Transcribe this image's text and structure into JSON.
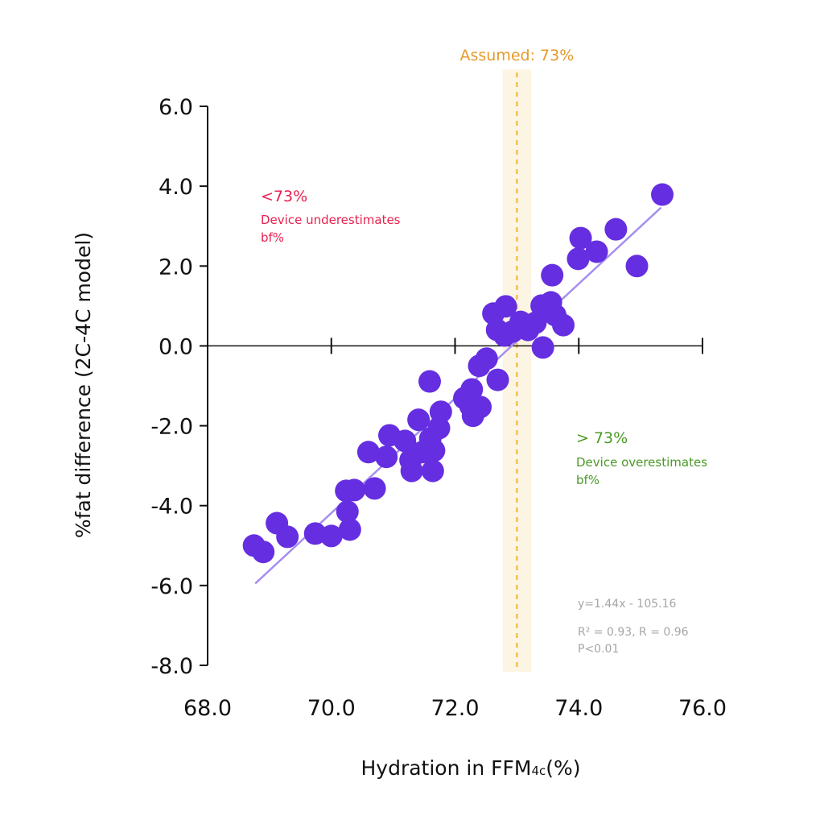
{
  "chart_data": {
    "type": "scatter",
    "title": "",
    "xlabel": "Hydration in FFM",
    "xlabel_subscript": "4c",
    "xlabel_suffix": "(%)",
    "ylabel": "%fat difference (2C-4C model)",
    "xlim": [
      68.0,
      76.0
    ],
    "ylim": [
      -8.0,
      6.0
    ],
    "x_ticks": [
      68.0,
      70.0,
      72.0,
      74.0,
      76.0
    ],
    "x_tick_labels": [
      "68.0",
      "70.0",
      "72.0",
      "74.0",
      "76.0"
    ],
    "y_ticks": [
      6.0,
      4.0,
      2.0,
      0.0,
      -2.0,
      -4.0,
      -6.0,
      -8.0
    ],
    "y_tick_labels": [
      "6.0",
      "4.0",
      "2.0",
      "0.0",
      "-2.0",
      "-4.0",
      "-6.0",
      "-8.0"
    ],
    "grid": false,
    "colors": {
      "points": "#652ee0",
      "regression_line": "#a68ef0",
      "assumed_line": "#f0b52c",
      "assumed_band": "#fdf5e4",
      "assumed_label": "#e59a2c",
      "under_annotation": "#e8214f",
      "over_annotation": "#4a9a24",
      "stats_text": "#a6a6a6",
      "axis": "#111111"
    },
    "reference_line": {
      "x": 73.0,
      "band": [
        72.77,
        73.23
      ],
      "label": "Assumed: 73%"
    },
    "regression": {
      "slope": 1.44,
      "intercept": -105.16,
      "x_range": [
        68.77,
        75.33
      ]
    },
    "annotations": {
      "under": {
        "heading": "<73%",
        "line1": "Device underestimates",
        "line2": "bf%"
      },
      "over": {
        "heading": "> 73%",
        "line1": "Device overestimates",
        "line2": "bf%"
      },
      "stats": {
        "equation": "y=1.44x - 105.16",
        "r_values": "R² = 0.93, R = 0.96",
        "p_value": "P<0.01"
      }
    },
    "series": [
      {
        "name": "participants",
        "points": [
          [
            68.75,
            -5.0
          ],
          [
            68.9,
            -5.16
          ],
          [
            69.12,
            -4.44
          ],
          [
            69.29,
            -4.78
          ],
          [
            69.74,
            -4.7
          ],
          [
            70.0,
            -4.76
          ],
          [
            70.3,
            -4.6
          ],
          [
            70.26,
            -4.15
          ],
          [
            70.24,
            -3.63
          ],
          [
            70.37,
            -3.61
          ],
          [
            70.7,
            -3.57
          ],
          [
            70.6,
            -2.66
          ],
          [
            70.89,
            -2.78
          ],
          [
            70.94,
            -2.24
          ],
          [
            71.19,
            -2.38
          ],
          [
            71.41,
            -1.85
          ],
          [
            71.28,
            -2.86
          ],
          [
            71.47,
            -2.66
          ],
          [
            71.6,
            -2.32
          ],
          [
            71.77,
            -1.65
          ],
          [
            71.74,
            -2.06
          ],
          [
            71.66,
            -2.62
          ],
          [
            71.64,
            -3.13
          ],
          [
            71.3,
            -3.13
          ],
          [
            71.59,
            -0.89
          ],
          [
            72.15,
            -1.31
          ],
          [
            72.27,
            -1.09
          ],
          [
            72.25,
            -1.51
          ],
          [
            72.41,
            -1.53
          ],
          [
            72.29,
            -1.75
          ],
          [
            72.39,
            -0.5
          ],
          [
            72.51,
            -0.32
          ],
          [
            72.69,
            -0.85
          ],
          [
            72.62,
            0.81
          ],
          [
            72.82,
            0.99
          ],
          [
            72.68,
            0.4
          ],
          [
            72.8,
            0.26
          ],
          [
            72.93,
            0.36
          ],
          [
            73.06,
            0.6
          ],
          [
            73.18,
            0.4
          ],
          [
            73.3,
            0.58
          ],
          [
            73.4,
            1.01
          ],
          [
            73.55,
            1.09
          ],
          [
            73.57,
            1.77
          ],
          [
            73.42,
            -0.04
          ],
          [
            73.62,
            0.77
          ],
          [
            73.75,
            0.52
          ],
          [
            74.03,
            2.7
          ],
          [
            73.99,
            2.18
          ],
          [
            74.29,
            2.36
          ],
          [
            74.6,
            2.92
          ],
          [
            74.94,
            2.0
          ],
          [
            75.35,
            3.79
          ]
        ]
      }
    ]
  }
}
